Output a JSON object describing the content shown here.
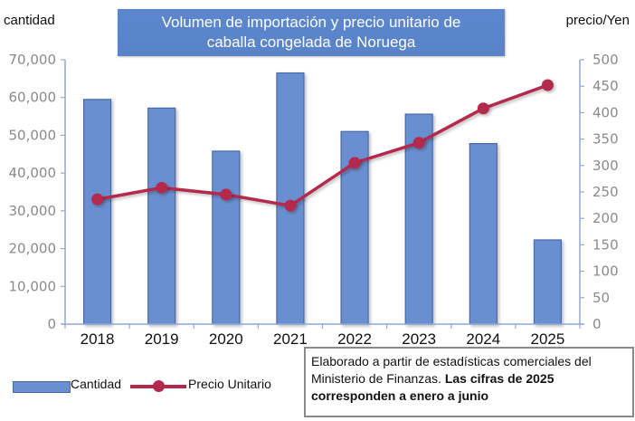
{
  "chart_data": {
    "type": "bar+line",
    "title": "Volumen de importación y precio unitario de caballa congelada de Noruega",
    "xlabel": "",
    "ylabel_left": "cantidad",
    "ylabel_right": "precio/Yen",
    "categories": [
      "2018",
      "2019",
      "2020",
      "2021",
      "2022",
      "2023",
      "2024",
      "2025"
    ],
    "series": [
      {
        "name": "Cantidad",
        "type": "bar",
        "axis": "left",
        "color": "#6a8fd0",
        "values": [
          59500,
          57200,
          45800,
          66500,
          51000,
          55600,
          47800,
          22300
        ]
      },
      {
        "name": "Precio Unitario",
        "type": "line",
        "axis": "right",
        "color": "#b3294d",
        "values": [
          236,
          258,
          245,
          224,
          305,
          343,
          408,
          452
        ]
      }
    ],
    "ylim_left": [
      0,
      70000
    ],
    "yticks_left": [
      "0",
      "10,000",
      "20,000",
      "30,000",
      "40,000",
      "50,000",
      "60,000",
      "70,000"
    ],
    "ylim_right": [
      0,
      500
    ],
    "yticks_right": [
      "0",
      "50",
      "100",
      "150",
      "200",
      "250",
      "300",
      "350",
      "400",
      "450",
      "500"
    ],
    "grid": false,
    "legend_position": "bottom-left"
  },
  "title_lines": [
    "Volumen de importación y precio unitario de",
    "caballa congelada de Noruega"
  ],
  "axis_units": {
    "left": "cantidad",
    "right": "precio/Yen"
  },
  "legend": {
    "bar_label": "Cantidad",
    "line_label": "Precio Unitario"
  },
  "note": {
    "normal": "Elaborado a partir de estadísticas comerciales del Ministerio de Finanzas. ",
    "bold": "Las cifras de 2025 corresponden a enero a junio"
  },
  "colors": {
    "bar": "#6a8fd0",
    "bar_border": "#4a6aa6",
    "line": "#b3294d",
    "axis": "#8fa8d8",
    "title_bg": "#5b86cf"
  }
}
